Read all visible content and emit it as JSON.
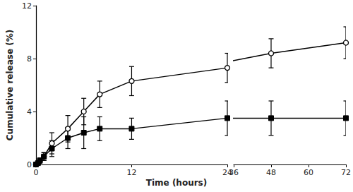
{
  "chart_data": {
    "type": "line",
    "x_label": "Time (hours)",
    "y_label": "Cumulative release (%)",
    "x": [
      0,
      0.25,
      0.5,
      1,
      2,
      4,
      6,
      8,
      12,
      24,
      48,
      72
    ],
    "series": [
      {
        "color": "#000000",
        "marker": "circle_open",
        "values": [
          0,
          0.1,
          0.3,
          0.6,
          1.6,
          2.7,
          4.0,
          5.3,
          6.3,
          7.3,
          8.4,
          9.2
        ],
        "errors": [
          0,
          0.1,
          0.2,
          0.3,
          0.8,
          1.0,
          1.0,
          1.0,
          1.1,
          1.1,
          1.1,
          1.2
        ]
      },
      {
        "color": "#000000",
        "marker": "square",
        "values": [
          0,
          0.1,
          0.3,
          0.6,
          1.2,
          2.0,
          2.4,
          2.7,
          2.7,
          3.5,
          3.5,
          3.5
        ],
        "errors": [
          0,
          0.1,
          0.2,
          0.3,
          0.6,
          0.8,
          1.2,
          0.9,
          0.8,
          1.3,
          1.3,
          1.3
        ]
      }
    ],
    "xlim": [
      0,
      72
    ],
    "xticks": [
      0,
      12,
      24,
      36,
      48,
      60,
      72
    ],
    "x_break": [
      24,
      36
    ],
    "ylim": [
      0,
      12
    ],
    "yticks": [
      0,
      4,
      8,
      12
    ],
    "grid": false
  }
}
